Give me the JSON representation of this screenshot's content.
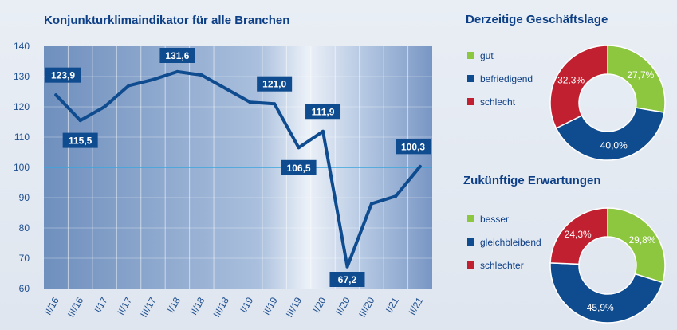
{
  "chart_data": [
    {
      "type": "line",
      "title": "Konjunkturklimaindikator für alle Branchen",
      "xlabel": "",
      "ylabel": "",
      "ylim": [
        60,
        140
      ],
      "yticks": [
        60,
        70,
        80,
        90,
        100,
        110,
        120,
        130,
        140
      ],
      "reference_line": 100,
      "grid": true,
      "categories": [
        "II/16",
        "III/16",
        "I/17",
        "II/17",
        "III/17",
        "I/18",
        "II/18",
        "III/18",
        "I/19",
        "II/19",
        "III/19",
        "I/20",
        "II/20",
        "III/20",
        "I/21",
        "II/21"
      ],
      "series": [
        {
          "values": [
            123.9,
            115.5,
            120.0,
            127.0,
            129.0,
            131.6,
            130.5,
            126.0,
            121.5,
            121.0,
            106.5,
            111.9,
            67.2,
            88.0,
            90.5,
            100.3
          ]
        }
      ],
      "data_labels": [
        {
          "index": 0,
          "text": "123,9",
          "pos": "above"
        },
        {
          "index": 1,
          "text": "115,5",
          "pos": "below"
        },
        {
          "index": 5,
          "text": "131,6",
          "pos": "above"
        },
        {
          "index": 9,
          "text": "121,0",
          "pos": "above"
        },
        {
          "index": 10,
          "text": "106,5",
          "pos": "below"
        },
        {
          "index": 11,
          "text": "111,9",
          "pos": "above"
        },
        {
          "index": 12,
          "text": "67,2",
          "pos": "below"
        },
        {
          "index": 15,
          "text": "100,3",
          "pos": "above"
        }
      ],
      "colors": {
        "line": "#0e4b8f",
        "reference": "#3aa6dd",
        "label_bg": "#0e4b8f"
      }
    },
    {
      "type": "pie",
      "title": "Derzeitige Geschäftslage",
      "categories": [
        "gut",
        "befriedigend",
        "schlecht"
      ],
      "values": [
        27.7,
        40.0,
        32.3
      ],
      "labels": [
        "27,7%",
        "40,0%",
        "32,3%"
      ],
      "colors": [
        "#8dc63f",
        "#0e4b8f",
        "#c0202f"
      ]
    },
    {
      "type": "pie",
      "title": "Zukünftige Erwartungen",
      "categories": [
        "besser",
        "gleichbleibend",
        "schlechter"
      ],
      "values": [
        29.8,
        45.9,
        24.3
      ],
      "labels": [
        "29,8%",
        "45,9%",
        "24,3%"
      ],
      "colors": [
        "#8dc63f",
        "#0e4b8f",
        "#c0202f"
      ]
    }
  ]
}
